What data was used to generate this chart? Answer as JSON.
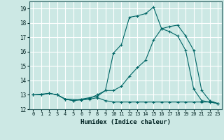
{
  "xlabel": "Humidex (Indice chaleur)",
  "background_color": "#cce8e4",
  "grid_color": "#ffffff",
  "line_color": "#006666",
  "xlim": [
    -0.5,
    23.5
  ],
  "ylim": [
    12,
    19.5
  ],
  "yticks": [
    12,
    13,
    14,
    15,
    16,
    17,
    18,
    19
  ],
  "xticks": [
    0,
    1,
    2,
    3,
    4,
    5,
    6,
    7,
    8,
    9,
    10,
    11,
    12,
    13,
    14,
    15,
    16,
    17,
    18,
    19,
    20,
    21,
    22,
    23
  ],
  "line1_x": [
    0,
    1,
    2,
    3,
    4,
    5,
    6,
    7,
    8,
    9,
    10,
    11,
    12,
    13,
    14,
    15,
    16,
    17,
    18,
    19,
    20,
    21,
    22,
    23
  ],
  "line1_y": [
    13.0,
    13.0,
    13.1,
    13.0,
    12.7,
    12.6,
    12.7,
    12.8,
    12.9,
    13.3,
    13.3,
    13.6,
    14.3,
    14.9,
    15.4,
    16.8,
    17.6,
    17.4,
    17.1,
    16.1,
    13.4,
    12.6,
    12.5,
    12.4
  ],
  "line2_x": [
    0,
    1,
    2,
    3,
    4,
    5,
    6,
    7,
    8,
    9,
    10,
    11,
    12,
    13,
    14,
    15,
    16,
    17,
    18,
    19,
    20,
    21,
    22,
    23
  ],
  "line2_y": [
    13.0,
    13.0,
    13.1,
    13.0,
    12.7,
    12.6,
    12.65,
    12.7,
    12.8,
    12.6,
    12.5,
    12.5,
    12.5,
    12.5,
    12.5,
    12.5,
    12.5,
    12.5,
    12.5,
    12.5,
    12.5,
    12.5,
    12.5,
    12.4
  ],
  "line3_x": [
    0,
    2,
    3,
    4,
    6,
    7,
    8,
    9,
    10,
    11,
    12,
    13,
    14,
    15,
    16,
    17,
    18,
    19,
    20,
    21,
    22,
    23
  ],
  "line3_y": [
    13.0,
    13.1,
    13.0,
    12.7,
    12.65,
    12.75,
    13.0,
    13.3,
    15.9,
    16.5,
    18.4,
    18.5,
    18.65,
    19.1,
    17.6,
    17.75,
    17.85,
    17.1,
    16.1,
    13.3,
    12.6,
    12.4
  ]
}
